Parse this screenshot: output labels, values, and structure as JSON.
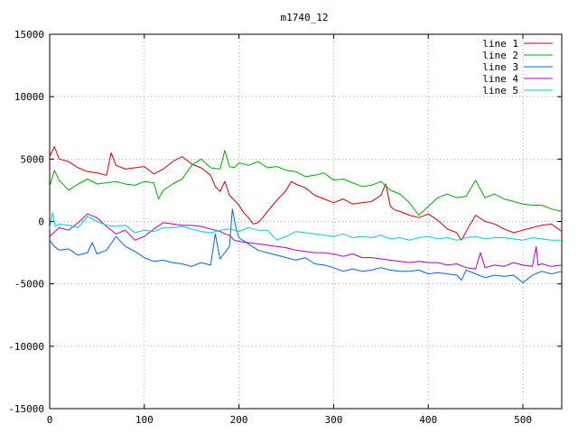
{
  "chart_data": {
    "type": "line",
    "title": "m1740_12",
    "xlabel": "",
    "ylabel": "",
    "xlim": [
      0,
      541
    ],
    "ylim": [
      -15000,
      15000
    ],
    "x_ticks": [
      0,
      100,
      200,
      300,
      400,
      500
    ],
    "y_ticks": [
      -15000,
      -10000,
      -5000,
      0,
      5000,
      10000,
      15000
    ],
    "grid": true,
    "legend_position": "top-right",
    "series": [
      {
        "name": "line 1",
        "color": "#cc0000",
        "x": [
          0,
          5,
          10,
          20,
          30,
          40,
          50,
          60,
          65,
          70,
          80,
          90,
          100,
          110,
          120,
          130,
          140,
          150,
          160,
          170,
          175,
          180,
          185,
          190,
          195,
          200,
          205,
          210,
          215,
          220,
          225,
          230,
          240,
          250,
          255,
          260,
          270,
          280,
          290,
          300,
          310,
          320,
          330,
          340,
          350,
          355,
          360,
          365,
          370,
          380,
          390,
          400,
          410,
          420,
          430,
          435,
          440,
          450,
          460,
          470,
          480,
          490,
          500,
          510,
          520,
          530,
          541
        ],
        "y": [
          5200,
          6000,
          5000,
          4800,
          4300,
          4000,
          3900,
          3700,
          5500,
          4500,
          4200,
          4300,
          4400,
          3800,
          4200,
          4800,
          5200,
          4600,
          4300,
          3700,
          2800,
          2400,
          3200,
          2100,
          1700,
          1300,
          700,
          300,
          -200,
          -100,
          300,
          800,
          1700,
          2500,
          3200,
          3000,
          2700,
          2100,
          1800,
          1500,
          1800,
          1400,
          1500,
          1600,
          2100,
          3000,
          1200,
          900,
          800,
          500,
          300,
          600,
          100,
          -600,
          -900,
          -1500,
          -800,
          500,
          0,
          -200,
          -600,
          -900,
          -700,
          -500,
          -300,
          -200,
          -800
        ]
      },
      {
        "name": "line 2",
        "color": "#00aa00",
        "x": [
          0,
          5,
          10,
          20,
          30,
          40,
          50,
          60,
          70,
          80,
          90,
          100,
          110,
          115,
          120,
          130,
          140,
          150,
          160,
          170,
          180,
          185,
          190,
          195,
          200,
          210,
          220,
          230,
          240,
          250,
          260,
          270,
          280,
          290,
          300,
          310,
          320,
          330,
          340,
          350,
          360,
          370,
          380,
          390,
          400,
          410,
          420,
          430,
          440,
          450,
          460,
          470,
          480,
          490,
          500,
          510,
          520,
          530,
          541
        ],
        "y": [
          2800,
          4100,
          3300,
          2500,
          3000,
          3400,
          3000,
          3100,
          3200,
          3000,
          2900,
          3200,
          3100,
          1800,
          2500,
          3000,
          3400,
          4500,
          5000,
          4300,
          4200,
          5700,
          4400,
          4300,
          4700,
          4500,
          4800,
          4300,
          4400,
          4100,
          4000,
          3600,
          3700,
          3900,
          3300,
          3400,
          3100,
          2800,
          2900,
          3200,
          2500,
          2200,
          1500,
          500,
          1200,
          1900,
          2200,
          1900,
          2000,
          3300,
          1900,
          2200,
          1800,
          1600,
          1400,
          1300,
          1300,
          1000,
          800
        ]
      },
      {
        "name": "line 3",
        "color": "#0066dd",
        "x": [
          0,
          5,
          10,
          20,
          30,
          40,
          45,
          50,
          60,
          70,
          80,
          90,
          100,
          110,
          120,
          130,
          140,
          150,
          160,
          170,
          175,
          180,
          185,
          190,
          193,
          197,
          200,
          210,
          220,
          230,
          240,
          250,
          260,
          270,
          280,
          290,
          300,
          310,
          320,
          330,
          340,
          350,
          360,
          370,
          380,
          390,
          400,
          410,
          420,
          430,
          435,
          440,
          450,
          460,
          470,
          480,
          490,
          500,
          510,
          520,
          530,
          541
        ],
        "y": [
          -1500,
          -2000,
          -2300,
          -2200,
          -2700,
          -2500,
          -1700,
          -2600,
          -2300,
          -1200,
          -2000,
          -2400,
          -2900,
          -3200,
          -3100,
          -3300,
          -3400,
          -3600,
          -3300,
          -3500,
          -1000,
          -3000,
          -2500,
          -2000,
          1000,
          -600,
          -1300,
          -1800,
          -2300,
          -2500,
          -2700,
          -2900,
          -3100,
          -2900,
          -3400,
          -3500,
          -3700,
          -4000,
          -3800,
          -4000,
          -3900,
          -3700,
          -3900,
          -4000,
          -4000,
          -3900,
          -4200,
          -4100,
          -4200,
          -4300,
          -4700,
          -3900,
          -4200,
          -4500,
          -4300,
          -4400,
          -4300,
          -4900,
          -4300,
          -4000,
          -4200,
          -4000
        ]
      },
      {
        "name": "line 4",
        "color": "#aa00cc",
        "x": [
          0,
          10,
          20,
          30,
          40,
          50,
          60,
          70,
          80,
          90,
          100,
          110,
          120,
          130,
          140,
          150,
          160,
          170,
          180,
          185,
          190,
          195,
          200,
          210,
          220,
          230,
          240,
          250,
          260,
          270,
          280,
          290,
          300,
          310,
          320,
          330,
          340,
          350,
          360,
          370,
          380,
          390,
          400,
          410,
          420,
          430,
          440,
          450,
          455,
          460,
          470,
          480,
          490,
          500,
          510,
          514,
          516,
          520,
          530,
          541
        ],
        "y": [
          -1200,
          -500,
          -700,
          -100,
          600,
          300,
          -400,
          -1000,
          -700,
          -1500,
          -1200,
          -600,
          -100,
          -200,
          -300,
          -300,
          -400,
          -600,
          -800,
          -1000,
          -1100,
          -1500,
          -1600,
          -1700,
          -1800,
          -1900,
          -2000,
          -2100,
          -2300,
          -2400,
          -2500,
          -2500,
          -2600,
          -2800,
          -2600,
          -2900,
          -2900,
          -3000,
          -3100,
          -3200,
          -3300,
          -3200,
          -3300,
          -3300,
          -3500,
          -3400,
          -3700,
          -3800,
          -2500,
          -3700,
          -3500,
          -3600,
          -3300,
          -3500,
          -3600,
          -2000,
          -3500,
          -3400,
          -3600,
          -3500
        ]
      },
      {
        "name": "line 5",
        "color": "#00cccc",
        "x": [
          0,
          3,
          6,
          10,
          20,
          30,
          40,
          50,
          60,
          70,
          80,
          90,
          100,
          110,
          120,
          130,
          140,
          150,
          160,
          170,
          180,
          190,
          200,
          210,
          220,
          230,
          240,
          250,
          260,
          270,
          280,
          290,
          300,
          310,
          320,
          330,
          340,
          350,
          360,
          370,
          380,
          390,
          400,
          410,
          420,
          430,
          440,
          450,
          460,
          470,
          480,
          490,
          500,
          510,
          520,
          530,
          541
        ],
        "y": [
          -600,
          700,
          -400,
          -200,
          -300,
          -500,
          400,
          0,
          -300,
          -400,
          -300,
          -900,
          -700,
          -800,
          -500,
          -500,
          -400,
          -600,
          -800,
          -900,
          -700,
          -600,
          -800,
          -500,
          -700,
          -700,
          -1500,
          -1200,
          -800,
          -900,
          -1000,
          -1100,
          -1200,
          -1000,
          -1300,
          -1200,
          -1300,
          -1100,
          -1400,
          -1300,
          -1500,
          -1300,
          -1200,
          -1400,
          -1300,
          -1500,
          -1300,
          -1200,
          -1400,
          -1300,
          -1300,
          -1400,
          -1500,
          -1300,
          -1400,
          -1500,
          -1500
        ]
      }
    ]
  }
}
